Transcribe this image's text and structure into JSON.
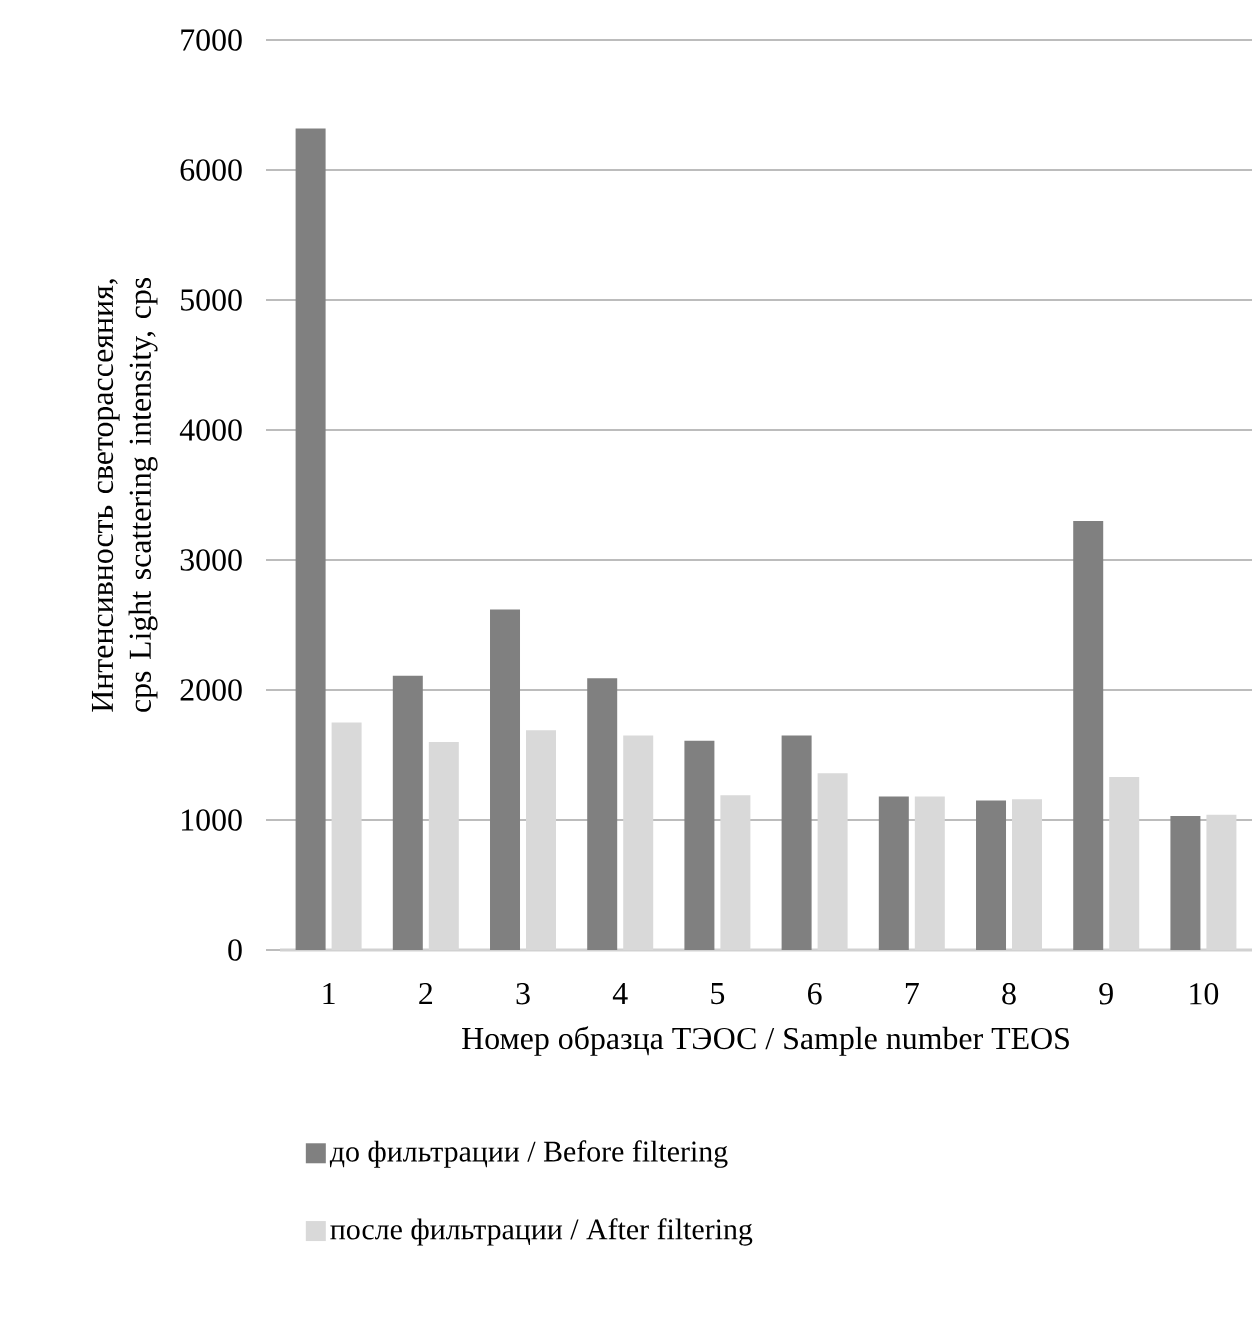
{
  "chart_data": {
    "type": "bar",
    "xlabel": "Номер образца ТЭОС / Sample number TEOS",
    "ylabel": "Интенсивность светорассеяния, cps Light scattering intensity, cps",
    "categories": [
      "1",
      "2",
      "3",
      "4",
      "5",
      "6",
      "7",
      "8",
      "9",
      "10"
    ],
    "series": [
      {
        "name": "до фильтрации / Before filtering",
        "color": "#808080",
        "values": [
          6320,
          2110,
          2620,
          2090,
          1610,
          1650,
          1180,
          1150,
          3300,
          1030
        ]
      },
      {
        "name": "после фильтрации / After filtering",
        "color": "#d9d9d9",
        "values": [
          1750,
          1600,
          1690,
          1650,
          1190,
          1360,
          1180,
          1160,
          1330,
          1040
        ]
      }
    ],
    "ylim": [
      0,
      7000
    ],
    "yticks": [
      0,
      1000,
      2000,
      3000,
      4000,
      5000,
      6000,
      7000
    ],
    "grid": "y",
    "legend": "bottom"
  }
}
